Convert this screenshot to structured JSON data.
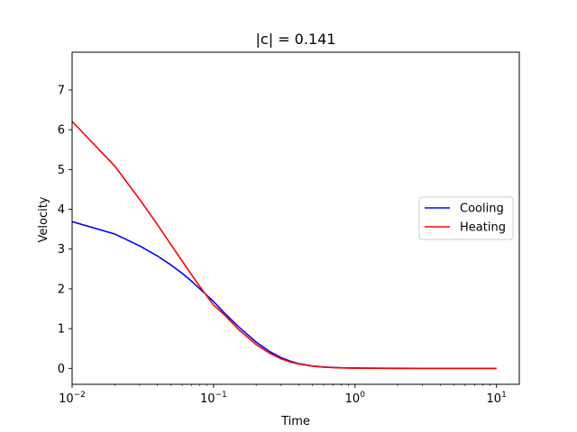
{
  "chart_data": {
    "type": "line",
    "title": "|c| = 0.141",
    "xlabel": "Time",
    "ylabel": "Velocity",
    "xscale": "log",
    "xlim": [
      0.01,
      14.5
    ],
    "ylim": [
      -0.4,
      7.95
    ],
    "xticks": [
      {
        "value": 0.01,
        "base": "10",
        "exp": "−2"
      },
      {
        "value": 0.1,
        "base": "10",
        "exp": "−1"
      },
      {
        "value": 1,
        "base": "10",
        "exp": "0"
      },
      {
        "value": 10,
        "base": "10",
        "exp": "1"
      }
    ],
    "yticks": [
      {
        "value": 0,
        "label": "0"
      },
      {
        "value": 1,
        "label": "1"
      },
      {
        "value": 2,
        "label": "2"
      },
      {
        "value": 3,
        "label": "3"
      },
      {
        "value": 4,
        "label": "4"
      },
      {
        "value": 5,
        "label": "5"
      },
      {
        "value": 6,
        "label": "6"
      },
      {
        "value": 7,
        "label": "7"
      }
    ],
    "legend": {
      "location": "center-right"
    },
    "grid": false,
    "series": [
      {
        "name": "Cooling",
        "color": "#0000ff",
        "x": [
          0.01,
          0.02,
          0.03,
          0.04,
          0.05,
          0.06,
          0.07,
          0.08,
          0.09,
          0.1,
          0.12,
          0.15,
          0.2,
          0.25,
          0.3,
          0.35,
          0.4,
          0.5,
          0.6,
          0.8,
          1,
          1.5,
          2,
          3,
          5,
          7,
          10
        ],
        "y": [
          3.69,
          3.38,
          3.08,
          2.83,
          2.6,
          2.39,
          2.19,
          2.0,
          1.83,
          1.68,
          1.38,
          1.05,
          0.66,
          0.42,
          0.27,
          0.18,
          0.12,
          0.06,
          0.035,
          0.015,
          0.008,
          0.004,
          0.002,
          0.001,
          0.0,
          0.0,
          0.0
        ]
      },
      {
        "name": "Heating",
        "color": "#ff0000",
        "x": [
          0.01,
          0.02,
          0.03,
          0.04,
          0.05,
          0.06,
          0.07,
          0.08,
          0.09,
          0.1,
          0.12,
          0.15,
          0.2,
          0.25,
          0.3,
          0.35,
          0.4,
          0.5,
          0.6,
          0.8,
          1,
          1.5,
          2,
          3,
          5,
          7,
          10
        ],
        "y": [
          6.21,
          5.09,
          4.25,
          3.62,
          3.11,
          2.7,
          2.35,
          2.06,
          1.81,
          1.59,
          1.34,
          0.98,
          0.6,
          0.38,
          0.24,
          0.16,
          0.11,
          0.055,
          0.03,
          0.012,
          0.006,
          0.003,
          0.001,
          0.0,
          0.0,
          0.0,
          0.0
        ]
      }
    ]
  }
}
